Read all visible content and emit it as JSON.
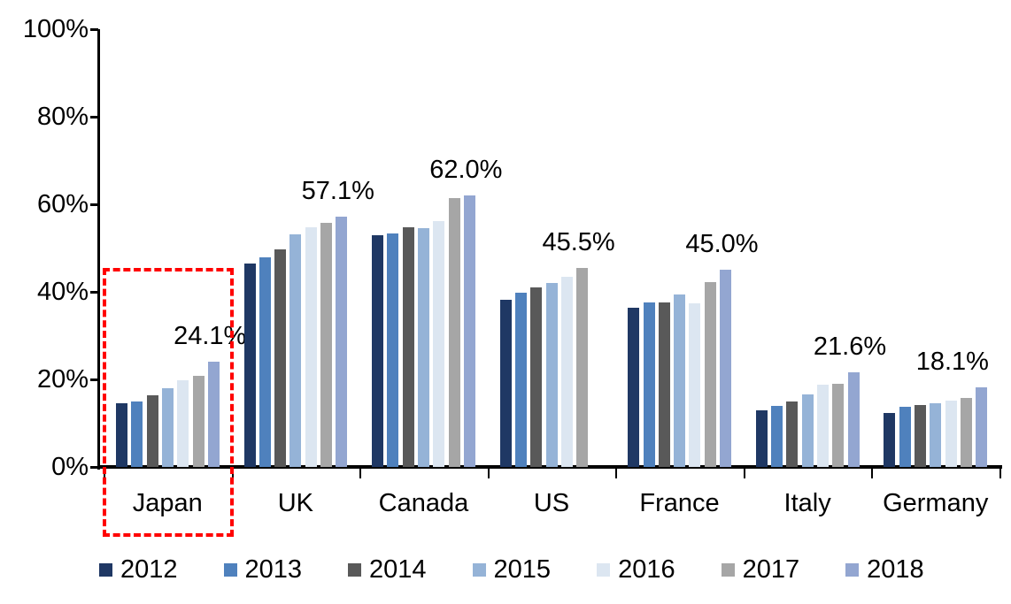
{
  "chart_data": {
    "type": "bar",
    "subtype": "grouped-vertical",
    "title": "",
    "xlabel": "",
    "ylabel": "",
    "unit": "percent",
    "ylim": [
      0,
      100
    ],
    "ytick_labels": [
      "0%",
      "20%",
      "40%",
      "60%",
      "80%",
      "100%"
    ],
    "grid": false,
    "legend_position": "bottom",
    "categories": [
      "Japan",
      "UK",
      "Canada",
      "US",
      "France",
      "Italy",
      "Germany"
    ],
    "series": [
      {
        "name": "2012",
        "color": "#1F3864",
        "values": [
          14.6,
          46.4,
          52.9,
          38.1,
          36.4,
          13.0,
          12.4
        ]
      },
      {
        "name": "2013",
        "color": "#4F81BD",
        "values": [
          14.9,
          47.8,
          53.4,
          39.9,
          37.5,
          13.9,
          13.8
        ]
      },
      {
        "name": "2014",
        "color": "#595959",
        "values": [
          16.3,
          49.8,
          54.8,
          41.0,
          37.5,
          15.0,
          14.1
        ]
      },
      {
        "name": "2015",
        "color": "#95B3D7",
        "values": [
          17.9,
          53.1,
          54.5,
          42.0,
          39.4,
          16.6,
          14.5
        ]
      },
      {
        "name": "2016",
        "color": "#DCE6F1",
        "values": [
          19.9,
          54.8,
          56.1,
          43.5,
          37.4,
          18.7,
          15.2
        ]
      },
      {
        "name": "2017",
        "color": "#A6A6A6",
        "values": [
          20.9,
          55.8,
          61.5,
          45.5,
          42.2,
          19.0,
          15.7
        ]
      },
      {
        "name": "2018",
        "color": "#93A6D1",
        "values": [
          24.1,
          57.1,
          62.0,
          null,
          45.0,
          21.6,
          18.1
        ]
      }
    ],
    "annotations": [
      {
        "category": "Japan",
        "label": "24.1%"
      },
      {
        "category": "UK",
        "label": "57.1%"
      },
      {
        "category": "Canada",
        "label": "62.0%"
      },
      {
        "category": "US",
        "label": "45.5%"
      },
      {
        "category": "France",
        "label": "45.0%"
      },
      {
        "category": "Italy",
        "label": "21.6%"
      },
      {
        "category": "Germany",
        "label": "18.1%"
      }
    ],
    "highlight": {
      "category": "Japan",
      "style": "dashed-box",
      "color": "#FF0000"
    },
    "axis_color": "#000000",
    "background_color": "#FFFFFF"
  }
}
